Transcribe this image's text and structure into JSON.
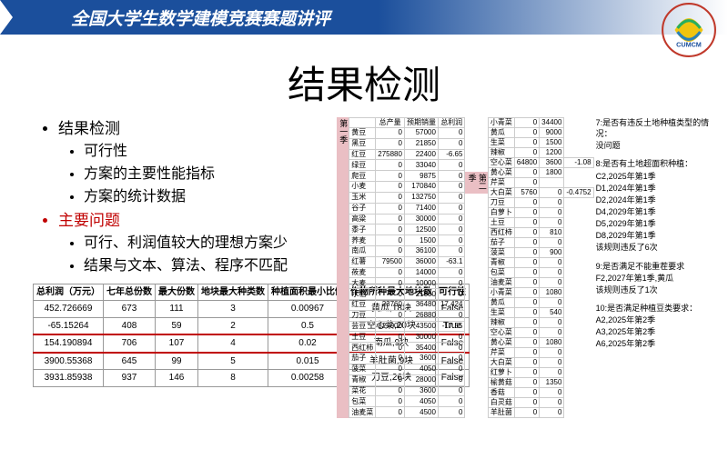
{
  "header": {
    "title": "全国大学生数学建模竞赛赛题讲评",
    "logo_text": "CUMCM"
  },
  "main_title": "结果检测",
  "bullets": {
    "b1": "结果检测",
    "b1a": "可行性",
    "b1b": "方案的主要性能指标",
    "b1c": "方案的统计数据",
    "b2": "主要问题",
    "b2a": "可行、利润值较大的理想方案少",
    "b2b": "结果与文本、算法、程序不匹配"
  },
  "table1": {
    "h1": "总利润（万元）",
    "h2": "七年总份数",
    "h3": "最大份数",
    "h4": "地块最大种类数",
    "h5": "种植面积最小比例",
    "h6": "作物所种最大地块数",
    "h7": "可行性",
    "rows": [
      {
        "c1": "452.726669",
        "c2": "673",
        "c3": "111",
        "c4": "3",
        "c5": "0.00967",
        "c6": "黄瓜,18块",
        "c7": "False"
      },
      {
        "c1": "-65.15264",
        "c2": "408",
        "c3": "59",
        "c4": "2",
        "c5": "0.5",
        "c6": "空心菜,20块",
        "c7": "True"
      },
      {
        "c1": "154.190894",
        "c2": "706",
        "c3": "107",
        "c4": "4",
        "c5": "0.02",
        "c6": "南瓜,9块",
        "c7": "False",
        "hl": true
      },
      {
        "c1": "3900.55368",
        "c2": "645",
        "c3": "99",
        "c4": "5",
        "c5": "0.015",
        "c6": "羊肚菌,9块",
        "c7": "False"
      },
      {
        "c1": "3931.85938",
        "c2": "937",
        "c3": "146",
        "c4": "8",
        "c5": "0.00258",
        "c6": "刀豆,26块",
        "c7": "False"
      }
    ]
  },
  "season1": "第一季",
  "season2": "第二季",
  "rt1": {
    "hA": "总产量",
    "hB": "预期销量",
    "hC": "总利润",
    "rows": [
      {
        "n": "黄豆",
        "a": "0",
        "b": "57000",
        "c": "0"
      },
      {
        "n": "黑豆",
        "a": "0",
        "b": "21850",
        "c": "0"
      },
      {
        "n": "红豆",
        "a": "275880",
        "b": "22400",
        "c": "-6.65"
      },
      {
        "n": "绿豆",
        "a": "0",
        "b": "33040",
        "c": "0"
      },
      {
        "n": "爬豆",
        "a": "0",
        "b": "9875",
        "c": "0"
      },
      {
        "n": "小麦",
        "a": "0",
        "b": "170840",
        "c": "0"
      },
      {
        "n": "玉米",
        "a": "0",
        "b": "132750",
        "c": "0"
      },
      {
        "n": "谷子",
        "a": "0",
        "b": "71400",
        "c": "0"
      },
      {
        "n": "高粱",
        "a": "0",
        "b": "30000",
        "c": "0"
      },
      {
        "n": "黍子",
        "a": "0",
        "b": "12500",
        "c": "0"
      },
      {
        "n": "荞麦",
        "a": "0",
        "b": "1500",
        "c": "0"
      },
      {
        "n": "南瓜",
        "a": "0",
        "b": "36100",
        "c": "0"
      },
      {
        "n": "红薯",
        "a": "79500",
        "b": "36000",
        "c": "-63.1"
      },
      {
        "n": "莜麦",
        "a": "0",
        "b": "14000",
        "c": "0"
      },
      {
        "n": "大麦",
        "a": "0",
        "b": "10000",
        "c": "0"
      },
      {
        "n": "水稻",
        "a": "0",
        "b": "21000",
        "c": "0"
      },
      {
        "n": "红豆",
        "a": "23760",
        "b": "36480",
        "c": "17.424"
      },
      {
        "n": "刀豆",
        "a": "0",
        "b": "26880",
        "c": "0"
      },
      {
        "n": "芸豆",
        "a": "327000",
        "b": "43500",
        "c": "-17.55"
      },
      {
        "n": "土豆",
        "a": "0",
        "b": "30000",
        "c": "0"
      },
      {
        "n": "西红柿",
        "a": "0",
        "b": "35400",
        "c": "0"
      },
      {
        "n": "茄子",
        "a": "0",
        "b": "3600",
        "c": "0"
      },
      {
        "n": "菠菜",
        "a": "0",
        "b": "4050",
        "c": "0"
      },
      {
        "n": "青椒",
        "a": "0",
        "b": "28000",
        "c": "0"
      },
      {
        "n": "菜花",
        "a": "0",
        "b": "3600",
        "c": "0"
      },
      {
        "n": "包菜",
        "a": "0",
        "b": "4050",
        "c": "0"
      },
      {
        "n": "油麦菜",
        "a": "0",
        "b": "4500",
        "c": "0"
      }
    ]
  },
  "rt2": {
    "rows": [
      {
        "n": "小青菜",
        "a": "0",
        "b": "34400"
      },
      {
        "n": "黄瓜",
        "a": "0",
        "b": "9000"
      },
      {
        "n": "生菜",
        "a": "0",
        "b": "1500"
      },
      {
        "n": "辣椒",
        "a": "0",
        "b": "1200"
      },
      {
        "n": "空心菜",
        "a": "64800",
        "b": "3600",
        "v": "-1.08"
      },
      {
        "n": "黄心菜",
        "a": "0",
        "b": "1800"
      },
      {
        "n": "芹菜",
        "a": "0",
        "b": ""
      },
      {
        "n": "大白菜",
        "a": "5760",
        "b": "0",
        "v": "-0.4752"
      },
      {
        "n": "刀豆",
        "a": "0",
        "b": "0"
      },
      {
        "n": "白萝卜",
        "a": "0",
        "b": "0"
      },
      {
        "n": "土豆",
        "a": "0",
        "b": "0"
      },
      {
        "n": "西红柿",
        "a": "0",
        "b": "810"
      },
      {
        "n": "茄子",
        "a": "0",
        "b": "0"
      },
      {
        "n": "菠菜",
        "a": "0",
        "b": "900"
      },
      {
        "n": "青椒",
        "a": "0",
        "b": "0"
      },
      {
        "n": "包菜",
        "a": "0",
        "b": "0"
      },
      {
        "n": "油麦菜",
        "a": "0",
        "b": "0"
      },
      {
        "n": "小青菜",
        "a": "0",
        "b": "1080"
      },
      {
        "n": "黄瓜",
        "a": "0",
        "b": "0"
      },
      {
        "n": "生菜",
        "a": "0",
        "b": "540"
      },
      {
        "n": "辣椒",
        "a": "0",
        "b": "0"
      },
      {
        "n": "空心菜",
        "a": "0",
        "b": "0"
      },
      {
        "n": "黄心菜",
        "a": "0",
        "b": "1080"
      },
      {
        "n": "芹菜",
        "a": "0",
        "b": "0"
      },
      {
        "n": "大白菜",
        "a": "0",
        "b": "0"
      },
      {
        "n": "红萝卜",
        "a": "0",
        "b": "0"
      },
      {
        "n": "榆黄菇",
        "a": "0",
        "b": "1350"
      },
      {
        "n": "香菇",
        "a": "0",
        "b": "0"
      },
      {
        "n": "白灵菇",
        "a": "0",
        "b": "0"
      },
      {
        "n": "羊肚菌",
        "a": "0",
        "b": "0"
      }
    ]
  },
  "ann": {
    "a7": "7:是否有违反土地种植类型的情况：",
    "a7b": "没问题",
    "a8": "8:是否有土地超面积种植：",
    "a8b": "C2,2025年第1季",
    "a8c": "D1,2024年第1季",
    "a8d": "D2,2024年第1季",
    "a8e": "D4,2029年第1季",
    "a8f": "D5,2029年第1季",
    "a8g": "D8,2029年第1季",
    "a8h": "该规则违反了6次",
    "a9": "9:是否满足不能重茬要求",
    "a9b": "F2,2027年第1季,黄瓜",
    "a9c": "该规则违反了1次",
    "a10": "10:是否满足种植豆类要求：",
    "a10b": "A2,2025年第2季",
    "a10c": "A3,2025年第2季",
    "a10d": "A6,2025年第2季"
  }
}
